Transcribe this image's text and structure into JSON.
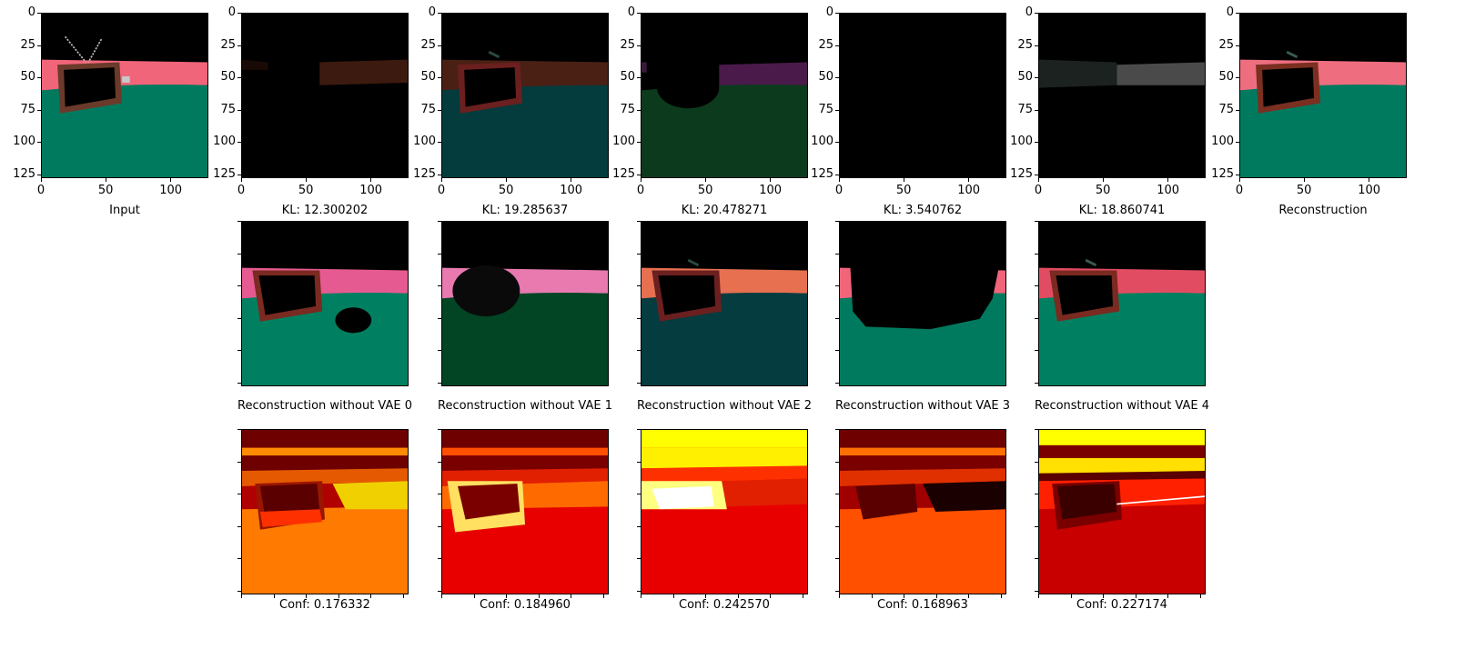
{
  "row1": {
    "tick_values": [
      "0",
      "25",
      "50",
      "75",
      "100",
      "125"
    ],
    "xtick_values": [
      "0",
      "50",
      "100"
    ],
    "panels": [
      {
        "label": "Input"
      },
      {
        "label": "KL: 12.300202"
      },
      {
        "label": "KL: 19.285637"
      },
      {
        "label": "KL: 20.478271"
      },
      {
        "label": "KL: 3.540762"
      },
      {
        "label": "KL: 18.860741"
      },
      {
        "label": "Reconstruction"
      }
    ]
  },
  "row2": {
    "panels": [
      {
        "label": "Reconstruction without VAE 0"
      },
      {
        "label": "Reconstruction without VAE 1"
      },
      {
        "label": "Reconstruction without VAE 2"
      },
      {
        "label": "Reconstruction without VAE 3"
      },
      {
        "label": "Reconstruction without VAE 4"
      }
    ]
  },
  "row3": {
    "panels": [
      {
        "label": "Conf: 0.176332"
      },
      {
        "label": "Conf: 0.184960"
      },
      {
        "label": "Conf: 0.242570"
      },
      {
        "label": "Conf: 0.168963"
      },
      {
        "label": "Conf: 0.227174"
      }
    ]
  },
  "colors": {
    "scene_pink": "#f0657a",
    "scene_green": "#007a5e",
    "tv_brown": "#6b3a2a",
    "heat_orange": "#ff7a00",
    "heat_red": "#e50000",
    "heat_yellow": "#ffff00",
    "heat_dark": "#6e0000"
  }
}
